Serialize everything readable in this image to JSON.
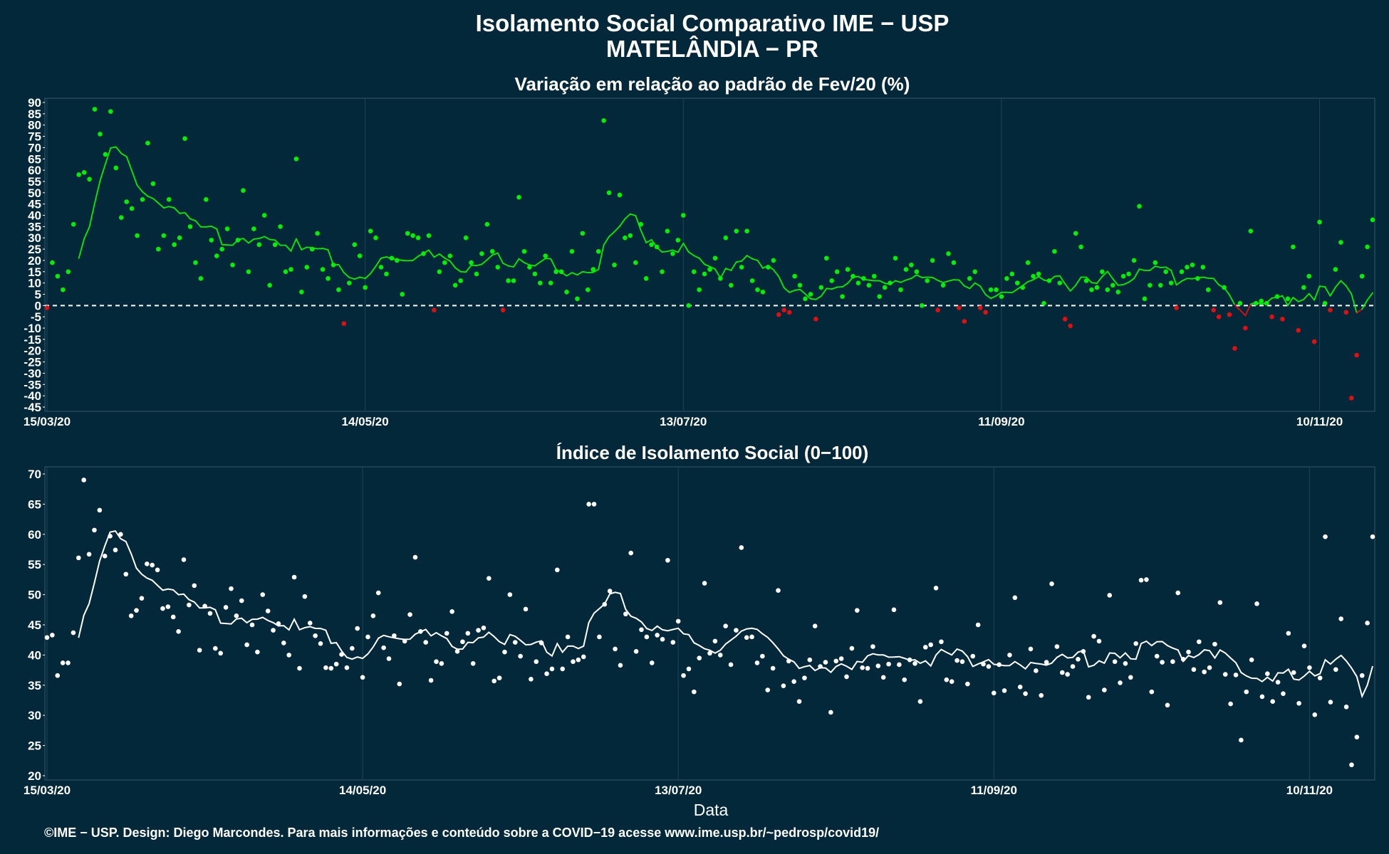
{
  "title_line1": "Isolamento Social Comparativo IME − USP",
  "title_line2": "MATELÂNDIA − PR",
  "xlabel": "Data",
  "credit": "©IME − USP. Design: Diego Marcondes. Para mais informações e conteúdo sobre a COVID−19 acesse www.ime.usp.br/~pedrosp/covid19/",
  "colors": {
    "background": "#03283a",
    "positive": "#00f000",
    "negative": "#e01010",
    "index": "#ffffff",
    "grid": "#1d4456",
    "zero_line": "#ffffff"
  },
  "chart_data": [
    {
      "id": "variation",
      "type": "scatter",
      "title": "Variação em relação ao padrão de Fev/20 (%)",
      "x_type": "date",
      "x_start": "2020-03-15",
      "x_end": "2020-11-27",
      "x_ticks": [
        "15/03/20",
        "14/05/20",
        "13/07/20",
        "11/09/20",
        "10/11/20"
      ],
      "ylim": [
        -45,
        90
      ],
      "y_ticks": [
        -45,
        -40,
        -35,
        -30,
        -25,
        -20,
        -15,
        -10,
        -5,
        0,
        5,
        10,
        15,
        20,
        25,
        30,
        35,
        40,
        45,
        50,
        55,
        60,
        65,
        70,
        75,
        80,
        85,
        90
      ],
      "reference_line": 0,
      "series": [
        {
          "kind": "points",
          "color_rule": "green when ≥ 0, red when < 0",
          "values": [
            -1,
            19,
            13,
            7,
            15,
            36,
            58,
            59,
            56,
            87,
            76,
            67,
            86,
            61,
            39,
            46,
            43,
            31,
            47,
            72,
            54,
            25,
            31,
            47,
            27,
            30,
            74,
            35,
            19,
            12,
            47,
            29,
            22,
            25,
            34,
            18,
            29,
            51,
            15,
            34,
            27,
            40,
            9,
            27,
            35,
            15,
            16,
            65,
            6,
            17,
            25,
            32,
            16,
            12,
            18,
            7,
            -8,
            10,
            27,
            22,
            8,
            33,
            30,
            17,
            14,
            21,
            20,
            5,
            32,
            31,
            30,
            23,
            31,
            -2,
            15,
            19,
            22,
            9,
            11,
            30,
            19,
            14,
            23,
            36,
            24,
            17,
            -2,
            11,
            11,
            48,
            24,
            17,
            14,
            10,
            22,
            10,
            15,
            15,
            6,
            24,
            3,
            32,
            7,
            16,
            24,
            82,
            50,
            18,
            49,
            30,
            31,
            19,
            36,
            12,
            27,
            26,
            15,
            33,
            23,
            29,
            40,
            0,
            15,
            7,
            14,
            16,
            21,
            12,
            30,
            9,
            33,
            17,
            33,
            11,
            7,
            6,
            17,
            20,
            -4,
            -2,
            -3,
            13,
            9,
            3,
            5,
            -6,
            8,
            21,
            11,
            15,
            4,
            16,
            13,
            10,
            12,
            9,
            13,
            4,
            8,
            10,
            21,
            7,
            16,
            18,
            15,
            0,
            11,
            20,
            -2,
            9,
            23,
            19,
            -1,
            -7,
            12,
            15,
            -1,
            -3,
            7,
            7,
            4,
            12,
            14,
            10,
            8,
            19,
            13,
            14,
            1,
            11,
            24,
            10,
            -6,
            -9,
            32,
            26,
            11,
            7,
            8,
            15,
            7,
            9,
            6,
            13,
            14,
            20,
            44,
            3,
            9,
            19,
            9,
            15,
            10,
            -1,
            15,
            17,
            18,
            12,
            17,
            7,
            -2,
            -5,
            8,
            -4,
            -19,
            1,
            -10,
            33,
            1,
            2,
            1,
            -5,
            4,
            -6,
            3,
            26,
            -11,
            8,
            13,
            -16,
            37,
            1,
            -2,
            16,
            28,
            -3,
            -41,
            -22,
            13,
            26,
            38
          ]
        },
        {
          "kind": "moving_average_line",
          "color_rule": "green when ≥ 0, red when < 0"
        }
      ]
    },
    {
      "id": "index",
      "type": "scatter",
      "title": "Índice de Isolamento Social (0−100)",
      "x_type": "date",
      "x_start": "2020-03-15",
      "x_end": "2020-11-27",
      "x_ticks": [
        "15/03/20",
        "14/05/20",
        "13/07/20",
        "11/09/20",
        "10/11/20"
      ],
      "ylim": [
        20,
        70
      ],
      "y_ticks": [
        20,
        25,
        30,
        35,
        40,
        45,
        50,
        55,
        60,
        65,
        70
      ],
      "series": [
        {
          "kind": "points",
          "color": "#ffffff",
          "values": [
            42.9,
            43.3,
            36.6,
            38.7,
            38.7,
            43.7,
            56.1,
            69.0,
            56.7,
            60.7,
            64.0,
            56.4,
            59.7,
            57.4,
            60.0,
            53.4,
            46.5,
            47.4,
            49.4,
            55.1,
            54.9,
            54.1,
            47.7,
            48.0,
            46.3,
            43.9,
            55.8,
            48.3,
            51.5,
            40.8,
            48.1,
            46.9,
            41.1,
            40.3,
            47.9,
            51.0,
            46.5,
            49.0,
            41.7,
            45.0,
            40.5,
            50.0,
            47.3,
            44.1,
            45.2,
            42.0,
            40.0,
            52.9,
            37.8,
            49.7,
            45.3,
            43.2,
            41.9,
            37.9,
            37.8,
            38.5,
            40.1,
            37.9,
            41.1,
            44.4,
            36.3,
            43.0,
            46.5,
            50.3,
            41.2,
            39.4,
            43.2,
            35.2,
            42.3,
            46.7,
            56.2,
            43.9,
            42.1,
            35.8,
            38.9,
            38.6,
            43.6,
            47.2,
            40.6,
            42.2,
            43.6,
            38.6,
            44.1,
            44.5,
            52.7,
            35.7,
            36.2,
            40.5,
            50.0,
            42.1,
            39.8,
            47.6,
            36.0,
            38.9,
            42.0,
            36.9,
            37.7,
            54.1,
            37.7,
            43.0,
            38.9,
            39.2,
            39.7,
            65.0,
            65.0,
            43.0,
            48.4,
            50.6,
            41.0,
            38.3,
            46.8,
            56.9,
            40.6,
            44.2,
            43.0,
            38.7,
            43.3,
            42.6,
            55.7,
            42.1,
            45.6,
            36.6,
            37.7,
            33.9,
            39.5,
            51.9,
            40.3,
            42.3,
            40.0,
            44.8,
            38.4,
            44.1,
            57.8,
            42.9,
            43.0,
            38.7,
            39.8,
            34.2,
            37.8,
            50.7,
            34.9,
            39.0,
            35.6,
            32.3,
            36.2,
            39.2,
            44.8,
            38.1,
            38.8,
            30.5,
            39.0,
            39.4,
            36.4,
            41.1,
            47.4,
            37.9,
            37.8,
            41.4,
            38.2,
            36.3,
            38.5,
            47.5,
            38.4,
            35.9,
            39.2,
            38.6,
            32.3,
            41.3,
            41.7,
            51.1,
            42.2,
            35.9,
            35.6,
            39.1,
            38.9,
            35.2,
            39.8,
            45.0,
            38.5,
            38.1,
            33.7,
            38.4,
            34.1,
            40.0,
            49.5,
            34.7,
            33.6,
            41.0,
            37.4,
            33.3,
            38.8,
            51.8,
            41.4,
            37.1,
            36.8,
            38.1,
            39.3,
            40.6,
            33.0,
            43.1,
            42.3,
            34.2,
            49.9,
            38.9,
            35.4,
            38.6,
            36.3,
            41.9,
            52.4,
            52.5,
            33.9,
            39.8,
            38.8,
            31.7,
            38.9,
            50.3,
            39.3,
            40.5,
            37.6,
            42.2,
            37.2,
            37.9,
            41.8,
            48.7,
            36.8,
            31.9,
            36.7,
            25.9,
            33.9,
            39.2,
            48.5,
            33.1,
            36.9,
            32.3,
            35.5,
            33.6,
            43.6,
            37.1,
            32.0,
            41.5,
            37.9,
            30.1,
            36.2,
            59.6,
            32.2,
            37.6,
            46.0,
            31.4,
            21.8,
            26.4,
            36.6,
            45.3,
            59.6
          ]
        },
        {
          "kind": "moving_average_line",
          "color": "#ffffff"
        }
      ]
    }
  ]
}
